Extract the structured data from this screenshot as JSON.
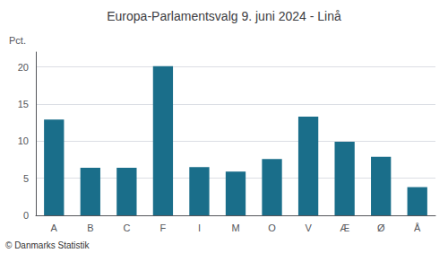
{
  "chart_data": {
    "type": "bar",
    "title": "Europa-Parlamentsvalg 9. juni 2024 - Linå",
    "ylabel": "Pct.",
    "annotations": [
      "© Danmarks Statistik"
    ],
    "categories": [
      "A",
      "B",
      "C",
      "F",
      "I",
      "M",
      "O",
      "V",
      "Æ",
      "Ø",
      "Å"
    ],
    "values": [
      12.9,
      6.4,
      6.4,
      20.1,
      6.5,
      5.9,
      7.6,
      13.3,
      9.9,
      7.9,
      3.8
    ],
    "color": "#1a6e8a",
    "ylim": [
      0,
      22
    ],
    "yticks": [
      0,
      5,
      10,
      15,
      20
    ],
    "grid": true
  }
}
